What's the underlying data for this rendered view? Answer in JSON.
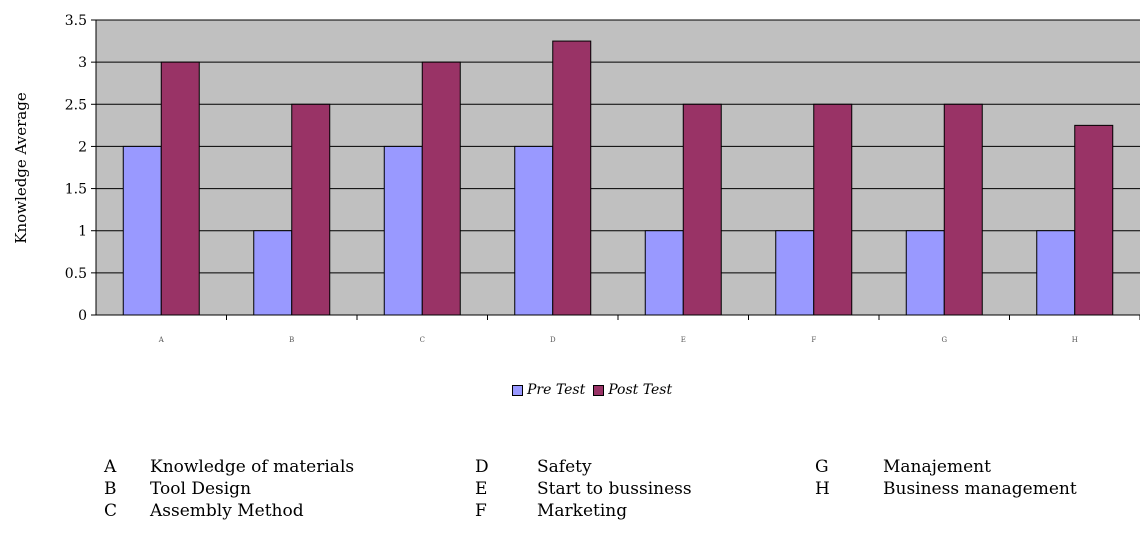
{
  "chart_data": {
    "type": "bar",
    "categories": [
      "A",
      "B",
      "C",
      "D",
      "E",
      "F",
      "G",
      "H"
    ],
    "series": [
      {
        "name": "Pre Test",
        "color": "#9999ff",
        "values": [
          2,
          1,
          2,
          2,
          1,
          1,
          1,
          1
        ]
      },
      {
        "name": "Post Test",
        "color": "#993366",
        "values": [
          3,
          2.5,
          3,
          3.25,
          2.5,
          2.5,
          2.5,
          2.25
        ]
      }
    ],
    "xlabel": "",
    "ylabel": "Knowledge Average",
    "ylim": [
      0,
      3.5
    ],
    "yticks": [
      "0",
      "0.5",
      "1",
      "1.5",
      "2",
      "2.5",
      "3",
      "3.5"
    ],
    "grid": true,
    "plot_background": "#c0c0c0",
    "legend_position": "bottom"
  },
  "key": [
    [
      {
        "letter": "A",
        "text": "Knowledge of materials"
      },
      {
        "letter": "B",
        "text": "Tool Design"
      },
      {
        "letter": "C",
        "text": "Assembly Method"
      }
    ],
    [
      {
        "letter": "D",
        "text": "Safety"
      },
      {
        "letter": "E",
        "text": "Start to bussiness"
      },
      {
        "letter": "F",
        "text": "Marketing"
      }
    ],
    [
      {
        "letter": "G",
        "text": "Manajement"
      },
      {
        "letter": "H",
        "text": "Business management"
      }
    ]
  ]
}
